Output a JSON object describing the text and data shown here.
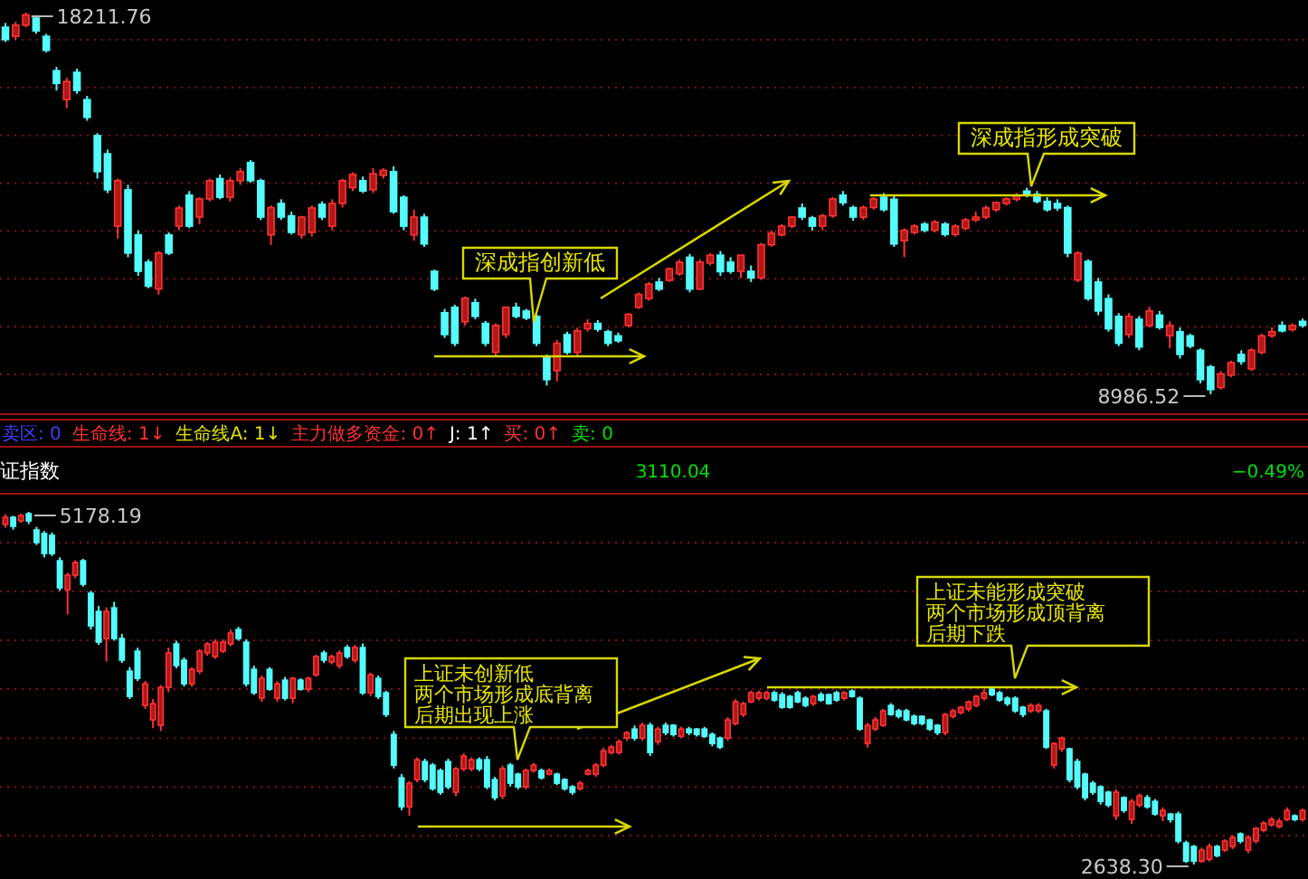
{
  "chart_data": [
    {
      "type": "candlestick",
      "grid": true,
      "yticks": [
        {
          "value": 17556,
          "label": null
        },
        {
          "value": 16402,
          "label": null
        },
        {
          "value": 15244,
          "label": null
        },
        {
          "value": 14089,
          "label": null
        },
        {
          "value": 12935,
          "label": null
        },
        {
          "value": 11781,
          "label": null
        },
        {
          "value": 10623,
          "label": null
        },
        {
          "value": 9468,
          "label": null
        }
      ],
      "annotations": [
        "18211.76",
        "8986.52",
        "深成指创新低",
        "深成指形成突破",
        "卖区: 0",
        "生命线: 1↓",
        "生命线A: 1↓",
        "主力做多资金: 0↑",
        "J: 1↑",
        "买: 0↑",
        "卖: 0"
      ],
      "categories": [
        null,
        null,
        null,
        null,
        null,
        null,
        null,
        null,
        null,
        null,
        null,
        null,
        null,
        null,
        null,
        null,
        null,
        null,
        null,
        null,
        null,
        null,
        null,
        null,
        null,
        null,
        null,
        null,
        null,
        null,
        null,
        null,
        null,
        null,
        null,
        null,
        null,
        null,
        null,
        null,
        null,
        null,
        null,
        null,
        null,
        null,
        null,
        null,
        null,
        null,
        null,
        null,
        null,
        null,
        null,
        null,
        null,
        null,
        null,
        null,
        null,
        null,
        null,
        null,
        null,
        null,
        null,
        null,
        null,
        null,
        null,
        null,
        null,
        null,
        null,
        null,
        null,
        null,
        null,
        null,
        null,
        null,
        null,
        null,
        null,
        null,
        null,
        null,
        null,
        null,
        null,
        null,
        null,
        null,
        null,
        null,
        null,
        null,
        null,
        null,
        null,
        null,
        null,
        null,
        null,
        null,
        null,
        null,
        null,
        null,
        null,
        null,
        null,
        null,
        null,
        null,
        null,
        null,
        null,
        null,
        null,
        null,
        null,
        null,
        null,
        null,
        null,
        null
      ],
      "ohlc": [
        [
          17860,
          17960,
          17500,
          17560
        ],
        [
          17640,
          17990,
          17560,
          17910
        ],
        [
          17910,
          18211.76,
          17860,
          18160
        ],
        [
          18080,
          18150,
          17700,
          17770
        ],
        [
          17640,
          17700,
          17250,
          17300
        ],
        [
          16810,
          16900,
          16330,
          16500
        ],
        [
          16110,
          16640,
          15900,
          16550
        ],
        [
          16770,
          16860,
          16250,
          16330
        ],
        [
          16110,
          16200,
          15600,
          15680
        ],
        [
          15240,
          15300,
          14200,
          14370
        ],
        [
          14800,
          14900,
          13850,
          13930
        ],
        [
          13050,
          14200,
          12750,
          14150
        ],
        [
          13930,
          14050,
          12300,
          12400
        ],
        [
          12840,
          12950,
          11850,
          11960
        ],
        [
          12180,
          12250,
          11550,
          11600
        ],
        [
          11530,
          12450,
          11400,
          12400
        ],
        [
          12840,
          12900,
          12350,
          12400
        ],
        [
          13050,
          13550,
          12950,
          13490
        ],
        [
          13800,
          13900,
          13000,
          13050
        ],
        [
          13270,
          13750,
          13100,
          13710
        ],
        [
          13710,
          14200,
          13650,
          14150
        ],
        [
          14200,
          14300,
          13700,
          13750
        ],
        [
          13750,
          14220,
          13650,
          14150
        ],
        [
          14150,
          14450,
          14050,
          14370
        ],
        [
          14590,
          14650,
          14100,
          14150
        ],
        [
          14150,
          14200,
          13200,
          13270
        ],
        [
          12840,
          13550,
          12600,
          13500
        ],
        [
          13600,
          13700,
          13200,
          13270
        ],
        [
          13300,
          13400,
          12850,
          12900
        ],
        [
          12840,
          13300,
          12750,
          13270
        ],
        [
          12900,
          13550,
          12800,
          13490
        ],
        [
          13580,
          13650,
          13200,
          13270
        ],
        [
          13050,
          13700,
          12950,
          13600
        ],
        [
          13600,
          14200,
          13500,
          14150
        ],
        [
          13980,
          14350,
          13900,
          14300
        ],
        [
          14150,
          14250,
          13850,
          13900
        ],
        [
          13930,
          14450,
          13850,
          14320
        ],
        [
          14280,
          14450,
          14200,
          14400
        ],
        [
          14370,
          14500,
          13350,
          13400
        ],
        [
          13750,
          13800,
          12950,
          13050
        ],
        [
          12840,
          13450,
          12700,
          13270
        ],
        [
          13270,
          13350,
          12550,
          12620
        ],
        [
          11960,
          12000,
          11480,
          11530
        ],
        [
          10960,
          11050,
          10350,
          10430
        ],
        [
          11090,
          11150,
          10150,
          10220
        ],
        [
          10740,
          11350,
          10650,
          11310
        ],
        [
          11200,
          11300,
          10800,
          10870
        ],
        [
          10700,
          10760,
          10150,
          10220
        ],
        [
          10000,
          10700,
          9900,
          10650
        ],
        [
          10430,
          11100,
          10350,
          11090
        ],
        [
          11090,
          11200,
          10820,
          10870
        ],
        [
          11000,
          11050,
          10780,
          10830
        ],
        [
          10870,
          10950,
          10150,
          10220
        ],
        [
          9900,
          9950,
          9200,
          9340
        ],
        [
          9560,
          10300,
          9300,
          10220
        ],
        [
          10430,
          10500,
          9950,
          10000
        ],
        [
          10000,
          10600,
          9900,
          10520
        ],
        [
          10570,
          10800,
          10500,
          10700
        ],
        [
          10700,
          10780,
          10500,
          10560
        ],
        [
          10500,
          10550,
          10150,
          10220
        ],
        [
          10400,
          10480,
          10230,
          10280
        ],
        [
          10650,
          10950,
          10600,
          10920
        ],
        [
          11090,
          11450,
          11050,
          11400
        ],
        [
          11300,
          11700,
          11250,
          11650
        ],
        [
          11700,
          11800,
          11480,
          11530
        ],
        [
          11740,
          12050,
          11700,
          12020
        ],
        [
          11900,
          12250,
          11850,
          12180
        ],
        [
          12300,
          12380,
          11450,
          11530
        ],
        [
          11530,
          12250,
          11500,
          12180
        ],
        [
          12160,
          12400,
          12100,
          12350
        ],
        [
          12350,
          12450,
          11850,
          11950
        ],
        [
          12180,
          12300,
          11900,
          11960
        ],
        [
          11960,
          12350,
          11800,
          12350
        ],
        [
          11960,
          12100,
          11700,
          11800
        ],
        [
          11800,
          12650,
          11750,
          12600
        ],
        [
          12600,
          12950,
          12550,
          12880
        ],
        [
          12840,
          13100,
          12800,
          13050
        ],
        [
          13050,
          13300,
          13000,
          13270
        ],
        [
          13490,
          13600,
          13200,
          13270
        ],
        [
          13250,
          13300,
          12950,
          13050
        ],
        [
          13050,
          13350,
          12950,
          13300
        ],
        [
          13300,
          13750,
          13250,
          13710
        ],
        [
          13800,
          13900,
          13550,
          13620
        ],
        [
          13500,
          13550,
          13180,
          13270
        ],
        [
          13270,
          13550,
          13200,
          13500
        ],
        [
          13500,
          13750,
          13450,
          13710
        ],
        [
          13750,
          13850,
          13400,
          13450
        ],
        [
          13700,
          13800,
          12550,
          12620
        ],
        [
          12700,
          13000,
          12300,
          12950
        ],
        [
          12900,
          13100,
          12850,
          13050
        ],
        [
          13100,
          13150,
          12900,
          12950
        ],
        [
          12950,
          13200,
          12900,
          13150
        ],
        [
          13100,
          13150,
          12800,
          12850
        ],
        [
          12850,
          13100,
          12800,
          13050
        ],
        [
          13000,
          13250,
          12950,
          13200
        ],
        [
          13200,
          13400,
          13150,
          13270
        ],
        [
          13270,
          13550,
          13220,
          13490
        ],
        [
          13450,
          13650,
          13400,
          13620
        ],
        [
          13600,
          13750,
          13550,
          13710
        ],
        [
          13700,
          13850,
          13650,
          13800
        ],
        [
          13900,
          13980,
          13750,
          13820
        ],
        [
          13820,
          13900,
          13600,
          13650
        ],
        [
          13650,
          13750,
          13400,
          13450
        ],
        [
          13600,
          13700,
          13420,
          13490
        ],
        [
          13500,
          13550,
          12300,
          12400
        ],
        [
          11750,
          12450,
          11700,
          12400
        ],
        [
          12200,
          12250,
          11250,
          11300
        ],
        [
          11700,
          11800,
          10900,
          11000
        ],
        [
          11300,
          11400,
          10500,
          10570
        ],
        [
          10870,
          10950,
          10150,
          10220
        ],
        [
          10430,
          10950,
          10350,
          10870
        ],
        [
          10800,
          10880,
          10050,
          10130
        ],
        [
          10650,
          11100,
          10600,
          11000
        ],
        [
          10900,
          11000,
          10550,
          10600
        ],
        [
          10400,
          10750,
          10100,
          10650
        ],
        [
          10500,
          10600,
          9850,
          9950
        ],
        [
          10400,
          10450,
          10100,
          10150
        ],
        [
          10050,
          10100,
          9250,
          9340
        ],
        [
          9650,
          9700,
          8986.52,
          9100
        ],
        [
          9150,
          9550,
          9100,
          9480
        ],
        [
          9450,
          9800,
          9400,
          9750
        ],
        [
          9950,
          10050,
          9700,
          9780
        ],
        [
          9600,
          10100,
          9550,
          10050
        ],
        [
          10000,
          10450,
          9950,
          10400
        ],
        [
          10400,
          10600,
          10350,
          10500
        ],
        [
          10650,
          10750,
          10480,
          10520
        ],
        [
          10550,
          10700,
          10500,
          10650
        ],
        [
          10750,
          10820,
          10600,
          10650
        ]
      ]
    },
    {
      "type": "candlestick",
      "grid": true,
      "title": "证指数",
      "yticks": [
        {
          "value": 4957,
          "label": null
        },
        {
          "value": 4605,
          "label": null
        },
        {
          "value": 4253,
          "label": null
        },
        {
          "value": 3901,
          "label": null
        },
        {
          "value": 3549,
          "label": null
        },
        {
          "value": 3197,
          "label": null
        },
        {
          "value": 2846,
          "label": null
        }
      ],
      "annotations": [
        "5178.19",
        "2638.30",
        "上证未创新低",
        "两个市场形成底背离",
        "后期出现上涨",
        "上证未能形成突破",
        "两个市场形成顶背离",
        "后期下跌",
        "3110.04",
        "−0.49%"
      ],
      "categories": [
        null,
        null,
        null,
        null,
        null,
        null,
        null,
        null,
        null,
        null,
        null,
        null,
        null,
        null,
        null,
        null,
        null,
        null,
        null,
        null,
        null,
        null,
        null,
        null,
        null,
        null,
        null,
        null,
        null,
        null,
        null,
        null,
        null,
        null,
        null,
        null,
        null,
        null,
        null,
        null,
        null,
        null,
        null,
        null,
        null,
        null,
        null,
        null,
        null,
        null,
        null,
        null,
        null,
        null,
        null,
        null,
        null,
        null,
        null,
        null,
        null,
        null,
        null,
        null,
        null,
        null,
        null,
        null,
        null,
        null,
        null,
        null,
        null,
        null,
        null,
        null,
        null,
        null,
        null,
        null,
        null,
        null,
        null,
        null,
        null,
        null,
        null,
        null,
        null,
        null,
        null,
        null,
        null,
        null,
        null,
        null,
        null,
        null,
        null,
        null,
        null,
        null,
        null,
        null,
        null,
        null,
        null,
        null,
        null,
        null,
        null,
        null,
        null,
        null,
        null,
        null,
        null,
        null,
        null,
        null,
        null,
        null,
        null,
        null,
        null,
        null,
        null,
        null,
        null,
        null,
        null,
        null,
        null,
        null,
        null,
        null,
        null,
        null,
        null,
        null,
        null,
        null,
        null,
        null,
        null,
        null,
        null,
        null,
        null,
        null,
        null,
        null,
        null,
        null,
        null,
        null,
        null,
        null,
        null,
        null,
        null,
        null,
        null,
        null,
        null,
        null,
        null,
        null
      ],
      "ohlc": [
        [
          5087,
          5160,
          5065,
          5139
        ],
        [
          5139,
          5150,
          5050,
          5074
        ],
        [
          5113,
          5165,
          5100,
          5152
        ],
        [
          5165,
          5178.19,
          5090,
          5113
        ],
        [
          5048,
          5070,
          4940,
          4957
        ],
        [
          5022,
          5040,
          4850,
          4878
        ],
        [
          5009,
          5030,
          4860,
          4878
        ],
        [
          4826,
          4850,
          4610,
          4631
        ],
        [
          4618,
          4740,
          4440,
          4722
        ],
        [
          4722,
          4830,
          4700,
          4813
        ],
        [
          4826,
          4840,
          4640,
          4657
        ],
        [
          4592,
          4610,
          4330,
          4357
        ],
        [
          4461,
          4500,
          4220,
          4240
        ],
        [
          4266,
          4490,
          4100,
          4461
        ],
        [
          4487,
          4530,
          4250,
          4266
        ],
        [
          4266,
          4300,
          4090,
          4110
        ],
        [
          4031,
          4060,
          3830,
          3849
        ],
        [
          4175,
          4200,
          3960,
          3979
        ],
        [
          3784,
          3960,
          3760,
          3940
        ],
        [
          3680,
          3830,
          3620,
          3797
        ],
        [
          3640,
          3930,
          3600,
          3914
        ],
        [
          3914,
          4200,
          3880,
          4162
        ],
        [
          4227,
          4250,
          4050,
          4071
        ],
        [
          4110,
          4130,
          3920,
          3940
        ],
        [
          3940,
          4060,
          3920,
          4044
        ],
        [
          4031,
          4190,
          4010,
          4175
        ],
        [
          4162,
          4240,
          4140,
          4227
        ],
        [
          4136,
          4260,
          4120,
          4240
        ],
        [
          4175,
          4260,
          4160,
          4240
        ],
        [
          4227,
          4330,
          4210,
          4305
        ],
        [
          4331,
          4350,
          4250,
          4266
        ],
        [
          4240,
          4260,
          3920,
          3940
        ],
        [
          4044,
          4070,
          3860,
          3875
        ],
        [
          3836,
          4000,
          3810,
          3979
        ],
        [
          4044,
          4060,
          3890,
          3901
        ],
        [
          3836,
          3960,
          3810,
          3940
        ],
        [
          3966,
          3990,
          3820,
          3836
        ],
        [
          3836,
          3990,
          3800,
          3979
        ],
        [
          3966,
          3980,
          3890,
          3901
        ],
        [
          3901,
          3990,
          3880,
          3979
        ],
        [
          4005,
          4150,
          3990,
          4136
        ],
        [
          4162,
          4180,
          4090,
          4110
        ],
        [
          4097,
          4150,
          4080,
          4136
        ],
        [
          4071,
          4180,
          4050,
          4162
        ],
        [
          4201,
          4220,
          4120,
          4136
        ],
        [
          4110,
          4220,
          4090,
          4201
        ],
        [
          4201,
          4230,
          3860,
          3875
        ],
        [
          3875,
          4020,
          3850,
          4005
        ],
        [
          3979,
          4000,
          3830,
          3849
        ],
        [
          3875,
          3890,
          3700,
          3719
        ],
        [
          3575,
          3600,
          3330,
          3354
        ],
        [
          3263,
          3290,
          3030,
          3054
        ],
        [
          3054,
          3240,
          2990,
          3224
        ],
        [
          3250,
          3410,
          3230,
          3393
        ],
        [
          3380,
          3400,
          3230,
          3250
        ],
        [
          3354,
          3370,
          3170,
          3185
        ],
        [
          3315,
          3330,
          3140,
          3159
        ],
        [
          3380,
          3400,
          3180,
          3198
        ],
        [
          3159,
          3340,
          3130,
          3328
        ],
        [
          3328,
          3440,
          3310,
          3419
        ],
        [
          3328,
          3410,
          3310,
          3393
        ],
        [
          3393,
          3410,
          3310,
          3328
        ],
        [
          3393,
          3420,
          3180,
          3198
        ],
        [
          3250,
          3270,
          3100,
          3120
        ],
        [
          3133,
          3350,
          3110,
          3328
        ],
        [
          3354,
          3370,
          3200,
          3224
        ],
        [
          3289,
          3300,
          3180,
          3198
        ],
        [
          3198,
          3330,
          3180,
          3315
        ],
        [
          3315,
          3370,
          3300,
          3354
        ],
        [
          3315,
          3330,
          3250,
          3263
        ],
        [
          3289,
          3330,
          3280,
          3315
        ],
        [
          3289,
          3300,
          3210,
          3224
        ],
        [
          3250,
          3260,
          3170,
          3185
        ],
        [
          3198,
          3210,
          3140,
          3159
        ],
        [
          3185,
          3240,
          3170,
          3224
        ],
        [
          3289,
          3330,
          3280,
          3315
        ],
        [
          3289,
          3370,
          3270,
          3354
        ],
        [
          3354,
          3480,
          3340,
          3458
        ],
        [
          3445,
          3500,
          3430,
          3484
        ],
        [
          3445,
          3540,
          3430,
          3523
        ],
        [
          3549,
          3600,
          3530,
          3588
        ],
        [
          3614,
          3640,
          3530,
          3549
        ],
        [
          3549,
          3660,
          3530,
          3641
        ],
        [
          3641,
          3660,
          3420,
          3445
        ],
        [
          3523,
          3630,
          3500,
          3614
        ],
        [
          3641,
          3660,
          3570,
          3588
        ],
        [
          3641,
          3650,
          3560,
          3575
        ],
        [
          3562,
          3630,
          3550,
          3614
        ],
        [
          3614,
          3630,
          3570,
          3588
        ],
        [
          3614,
          3620,
          3560,
          3575
        ],
        [
          3614,
          3630,
          3550,
          3562
        ],
        [
          3575,
          3590,
          3490,
          3510
        ],
        [
          3549,
          3560,
          3470,
          3484
        ],
        [
          3549,
          3700,
          3530,
          3680
        ],
        [
          3654,
          3830,
          3640,
          3810
        ],
        [
          3719,
          3810,
          3700,
          3797
        ],
        [
          3810,
          3890,
          3800,
          3875
        ],
        [
          3836,
          3890,
          3820,
          3875
        ],
        [
          3836,
          3890,
          3820,
          3875
        ],
        [
          3875,
          3890,
          3810,
          3823
        ],
        [
          3862,
          3880,
          3760,
          3771
        ],
        [
          3849,
          3860,
          3760,
          3771
        ],
        [
          3875,
          3890,
          3800,
          3810
        ],
        [
          3836,
          3850,
          3770,
          3784
        ],
        [
          3797,
          3860,
          3780,
          3849
        ],
        [
          3862,
          3880,
          3810,
          3823
        ],
        [
          3862,
          3870,
          3790,
          3797
        ],
        [
          3875,
          3890,
          3810,
          3823
        ],
        [
          3836,
          3890,
          3820,
          3875
        ],
        [
          3888,
          3900,
          3840,
          3849
        ],
        [
          3836,
          3850,
          3600,
          3614
        ],
        [
          3510,
          3660,
          3480,
          3641
        ],
        [
          3614,
          3700,
          3600,
          3680
        ],
        [
          3641,
          3760,
          3630,
          3745
        ],
        [
          3784,
          3800,
          3710,
          3719
        ],
        [
          3745,
          3760,
          3690,
          3706
        ],
        [
          3745,
          3760,
          3670,
          3680
        ],
        [
          3706,
          3720,
          3640,
          3654
        ],
        [
          3706,
          3710,
          3640,
          3654
        ],
        [
          3680,
          3690,
          3600,
          3614
        ],
        [
          3641,
          3650,
          3570,
          3588
        ],
        [
          3588,
          3730,
          3570,
          3719
        ],
        [
          3706,
          3760,
          3690,
          3745
        ],
        [
          3732,
          3780,
          3720,
          3771
        ],
        [
          3758,
          3820,
          3740,
          3810
        ],
        [
          3784,
          3860,
          3770,
          3849
        ],
        [
          3836,
          3900,
          3820,
          3875
        ],
        [
          3901,
          3920,
          3850,
          3862
        ],
        [
          3875,
          3890,
          3810,
          3823
        ],
        [
          3836,
          3850,
          3780,
          3797
        ],
        [
          3836,
          3850,
          3730,
          3745
        ],
        [
          3771,
          3780,
          3700,
          3719
        ],
        [
          3745,
          3800,
          3730,
          3784
        ],
        [
          3745,
          3800,
          3730,
          3784
        ],
        [
          3745,
          3760,
          3470,
          3484
        ],
        [
          3354,
          3520,
          3330,
          3510
        ],
        [
          3471,
          3560,
          3450,
          3549
        ],
        [
          3471,
          3480,
          3230,
          3250
        ],
        [
          3380,
          3400,
          3180,
          3198
        ],
        [
          3289,
          3300,
          3100,
          3120
        ],
        [
          3224,
          3240,
          3140,
          3159
        ],
        [
          3198,
          3210,
          3070,
          3093
        ],
        [
          3159,
          3170,
          3050,
          3067
        ],
        [
          2989,
          3180,
          2960,
          3159
        ],
        [
          3120,
          3130,
          3010,
          3028
        ],
        [
          2963,
          3110,
          2930,
          3093
        ],
        [
          3067,
          3150,
          3050,
          3133
        ],
        [
          3120,
          3140,
          3040,
          3054
        ],
        [
          3093,
          3110,
          2990,
          3002
        ],
        [
          2989,
          3050,
          2950,
          3028
        ],
        [
          3002,
          3010,
          2940,
          2963
        ],
        [
          3002,
          3020,
          2790,
          2807
        ],
        [
          2794,
          2810,
          2650,
          2663
        ],
        [
          2768,
          2780,
          2638.3,
          2663
        ],
        [
          2663,
          2760,
          2650,
          2742
        ],
        [
          2676,
          2790,
          2660,
          2768
        ],
        [
          2768,
          2780,
          2690,
          2702
        ],
        [
          2742,
          2820,
          2730,
          2807
        ],
        [
          2768,
          2850,
          2750,
          2833
        ],
        [
          2859,
          2870,
          2790,
          2807
        ],
        [
          2742,
          2850,
          2720,
          2833
        ],
        [
          2807,
          2910,
          2790,
          2898
        ],
        [
          2885,
          2950,
          2870,
          2937
        ],
        [
          2924,
          2980,
          2910,
          2963
        ],
        [
          2911,
          2970,
          2900,
          2950
        ],
        [
          2963,
          3050,
          2950,
          3028
        ],
        [
          2989,
          3000,
          2950,
          2963
        ],
        [
          2963,
          3040,
          2950,
          3028
        ]
      ]
    }
  ]
}
